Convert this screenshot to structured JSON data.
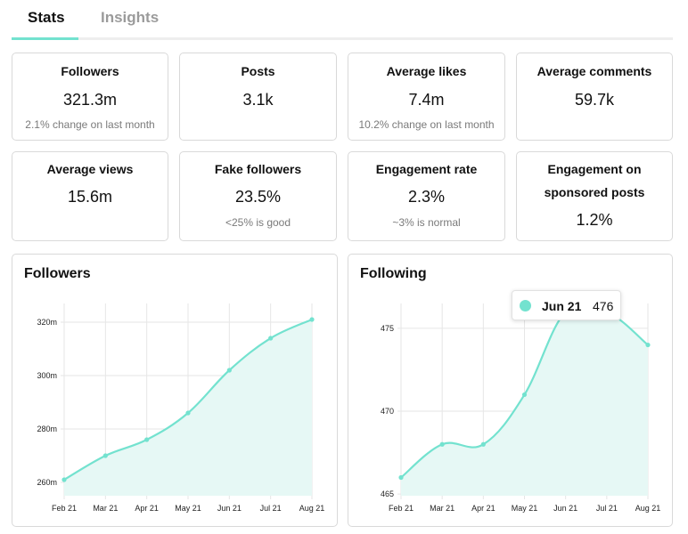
{
  "tabs": {
    "stats": "Stats",
    "insights": "Insights"
  },
  "stats": [
    {
      "title": "Followers",
      "value": "321.3m",
      "note": "2.1% change on last month"
    },
    {
      "title": "Posts",
      "value": "3.1k",
      "note": ""
    },
    {
      "title": "Average likes",
      "value": "7.4m",
      "note": "10.2% change on last month"
    },
    {
      "title": "Average comments",
      "value": "59.7k",
      "note": ""
    },
    {
      "title": "Average views",
      "value": "15.6m",
      "note": ""
    },
    {
      "title": "Fake followers",
      "value": "23.5%",
      "note": "<25% is good"
    },
    {
      "title": "Engagement rate",
      "value": "2.3%",
      "note": "~3% is normal"
    },
    {
      "title": "Engagement on",
      "title2": "sponsored posts",
      "value": "1.2%",
      "note": ""
    }
  ],
  "colors": {
    "accent": "#73e2cf",
    "fill": "#e6f8f5",
    "grid": "#e6e6e6"
  },
  "tooltip": {
    "label": "Jun 21",
    "value": "476"
  },
  "chart_data": [
    {
      "type": "area",
      "title": "Followers",
      "x": [
        "Feb 21",
        "Mar 21",
        "Apr 21",
        "May 21",
        "Jun 21",
        "Jul 21",
        "Aug 21"
      ],
      "values": [
        261,
        270,
        276,
        286,
        302,
        314,
        321
      ],
      "ylim": [
        255,
        327
      ],
      "yticks": [
        260,
        280,
        300,
        320
      ],
      "ytick_labels": [
        "260m",
        "280m",
        "300m",
        "320m"
      ],
      "grid": true
    },
    {
      "type": "area",
      "title": "Following",
      "x": [
        "Feb 21",
        "Mar 21",
        "Apr 21",
        "May 21",
        "Jun 21",
        "Jul 21",
        "Aug 21"
      ],
      "values": [
        466,
        468,
        468,
        471,
        476,
        476,
        474
      ],
      "ylim": [
        464.9,
        476.5
      ],
      "yticks": [
        465,
        470,
        475
      ],
      "ytick_labels": [
        "465",
        "470",
        "475"
      ],
      "grid": true
    }
  ]
}
